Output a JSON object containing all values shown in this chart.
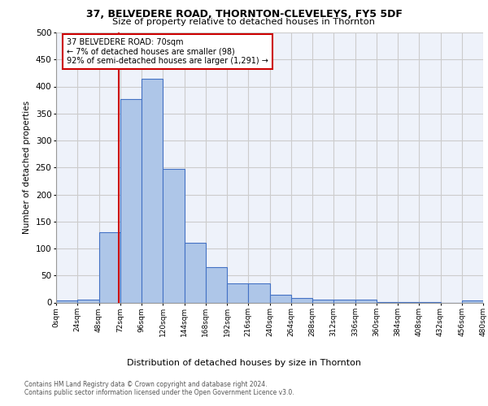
{
  "title1": "37, BELVEDERE ROAD, THORNTON-CLEVELEYS, FY5 5DF",
  "title2": "Size of property relative to detached houses in Thornton",
  "xlabel": "Distribution of detached houses by size in Thornton",
  "ylabel": "Number of detached properties",
  "bin_edges": [
    0,
    24,
    48,
    72,
    96,
    120,
    144,
    168,
    192,
    216,
    240,
    264,
    288,
    312,
    336,
    360,
    384,
    408,
    432,
    456,
    480
  ],
  "bar_heights": [
    4,
    6,
    130,
    377,
    415,
    247,
    111,
    65,
    35,
    35,
    15,
    9,
    6,
    5,
    5,
    1,
    1,
    1,
    0,
    4
  ],
  "bar_color": "#aec6e8",
  "bar_edgecolor": "#4472c4",
  "bar_linewidth": 0.8,
  "vline_x": 70,
  "vline_color": "#cc0000",
  "ylim": [
    0,
    500
  ],
  "yticks": [
    0,
    50,
    100,
    150,
    200,
    250,
    300,
    350,
    400,
    450,
    500
  ],
  "grid_color": "#cccccc",
  "background_color": "#eef2fa",
  "annotation_text": "37 BELVEDERE ROAD: 70sqm\n← 7% of detached houses are smaller (98)\n92% of semi-detached houses are larger (1,291) →",
  "annotation_box_color": "#ffffff",
  "annotation_box_edgecolor": "#cc0000",
  "footer1": "Contains HM Land Registry data © Crown copyright and database right 2024.",
  "footer2": "Contains public sector information licensed under the Open Government Licence v3.0.",
  "tick_labels": [
    "0sqm",
    "24sqm",
    "48sqm",
    "72sqm",
    "96sqm",
    "120sqm",
    "144sqm",
    "168sqm",
    "192sqm",
    "216sqm",
    "240sqm",
    "264sqm",
    "288sqm",
    "312sqm",
    "336sqm",
    "360sqm",
    "384sqm",
    "408sqm",
    "432sqm",
    "456sqm",
    "480sqm"
  ]
}
